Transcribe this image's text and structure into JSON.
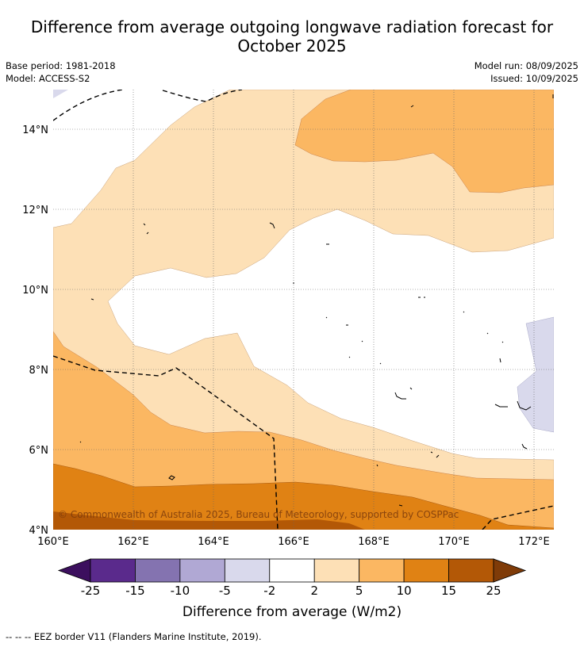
{
  "title_line1": "Difference from average outgoing longwave radiation forecast for",
  "title_line2": "October 2025",
  "base_period": "Base period: 1981-2018",
  "model": "Model: ACCESS-S2",
  "model_run": "Model run: 08/09/2025",
  "issued": "Issued: 10/09/2025",
  "copyright": "© Commonwealth of Australia 2025, Bureau of Meteorology, supported by COSPPac",
  "lat_labels": [
    "14°N",
    "12°N",
    "10°N",
    "8°N",
    "6°N",
    "4°N"
  ],
  "lon_labels": [
    "160°E",
    "162°E",
    "164°E",
    "166°E",
    "168°E",
    "170°E",
    "172°E"
  ],
  "colorbar": {
    "title": "Difference from average (W/m2)",
    "ticks": [
      "-25",
      "-15",
      "-10",
      "-5",
      "-2",
      "2",
      "5",
      "10",
      "15",
      "25"
    ],
    "colors": [
      "#3c0f5e",
      "#5a2a8c",
      "#8473b0",
      "#b0a8d4",
      "#d9d9ec",
      "#ffffff",
      "#fde0b6",
      "#fbb762",
      "#e08214",
      "#b35806",
      "#7f3b08"
    ]
  },
  "footer": "-- -- -- EEZ border V11 (Flanders Marine Institute, 2019)."
}
